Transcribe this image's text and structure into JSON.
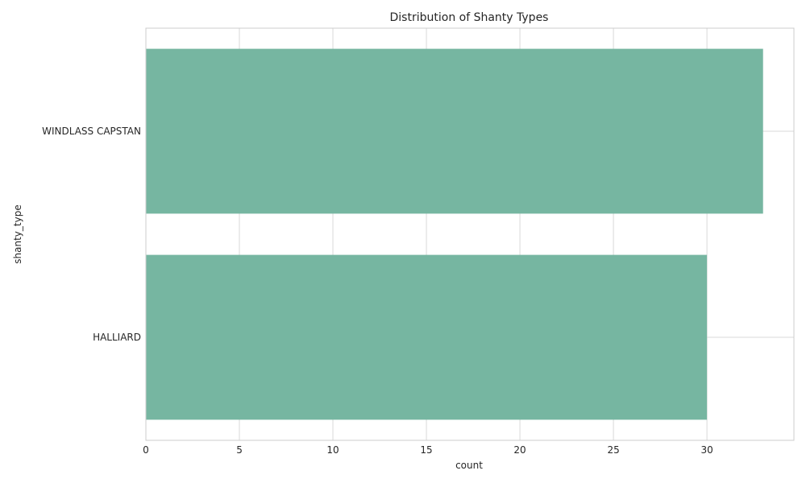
{
  "chart_data": {
    "type": "bar",
    "orientation": "horizontal",
    "title": "Distribution of Shanty Types",
    "xlabel": "count",
    "ylabel": "shanty_type",
    "categories": [
      "WINDLASS CAPSTAN",
      "HALLIARD"
    ],
    "values": [
      33,
      30
    ],
    "xlim": [
      0,
      34.65
    ],
    "xticks": [
      0,
      5,
      10,
      15,
      20,
      25,
      30
    ],
    "grid": true,
    "bar_color": "#76b6a1",
    "grid_color": "#d9d9d9",
    "spine_color": "#cccccc",
    "text_color": "#262626"
  }
}
